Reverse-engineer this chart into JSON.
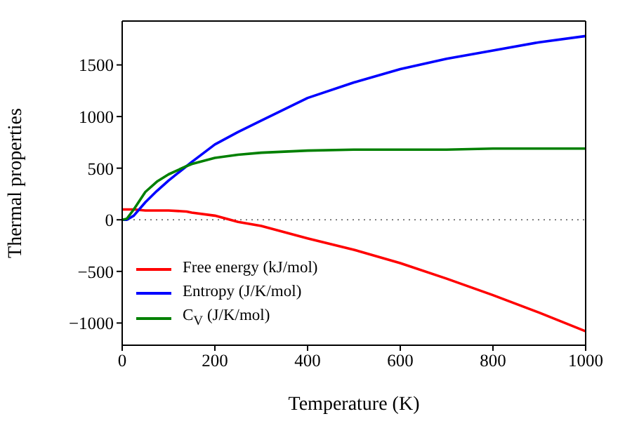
{
  "chart_data": {
    "type": "line",
    "xlabel": "Temperature (K)",
    "ylabel": "Thermal properties",
    "x": [
      0,
      10,
      25,
      50,
      75,
      100,
      139,
      150,
      200,
      250,
      300,
      400,
      500,
      600,
      700,
      800,
      900,
      1000
    ],
    "series": [
      {
        "name": "Free energy (kJ/mol)",
        "color": "#ff0000",
        "values": [
          100,
          100,
          100,
          90,
          90,
          90,
          80,
          70,
          40,
          -20,
          -60,
          -180,
          -290,
          -420,
          -570,
          -730,
          -900,
          -1080
        ]
      },
      {
        "name": "Entropy (J/K/mol)",
        "color": "#0000ff",
        "values": [
          0,
          0,
          40,
          170,
          280,
          380,
          520,
          560,
          730,
          850,
          960,
          1180,
          1330,
          1460,
          1560,
          1640,
          1720,
          1780
        ]
      },
      {
        "name": "C$_{V}$ (J/K/mol)",
        "color": "#008000",
        "values": [
          0,
          10,
          100,
          270,
          370,
          440,
          520,
          540,
          600,
          630,
          650,
          670,
          680,
          680,
          680,
          690,
          690,
          690
        ]
      }
    ],
    "xlim": [
      0,
      1000
    ],
    "xticks": [
      0,
      200,
      400,
      600,
      800,
      1000
    ],
    "ylim": [
      -1215,
      1925
    ],
    "yticks": [
      -1000,
      -500,
      0,
      500,
      1000,
      1500
    ],
    "ref_lines": [
      {
        "axis": "y",
        "value": 0,
        "color": "#555555",
        "line_style": "dotted"
      }
    ],
    "legend": "bottom left",
    "grid": false,
    "marker": "none",
    "line_style": "solid"
  }
}
